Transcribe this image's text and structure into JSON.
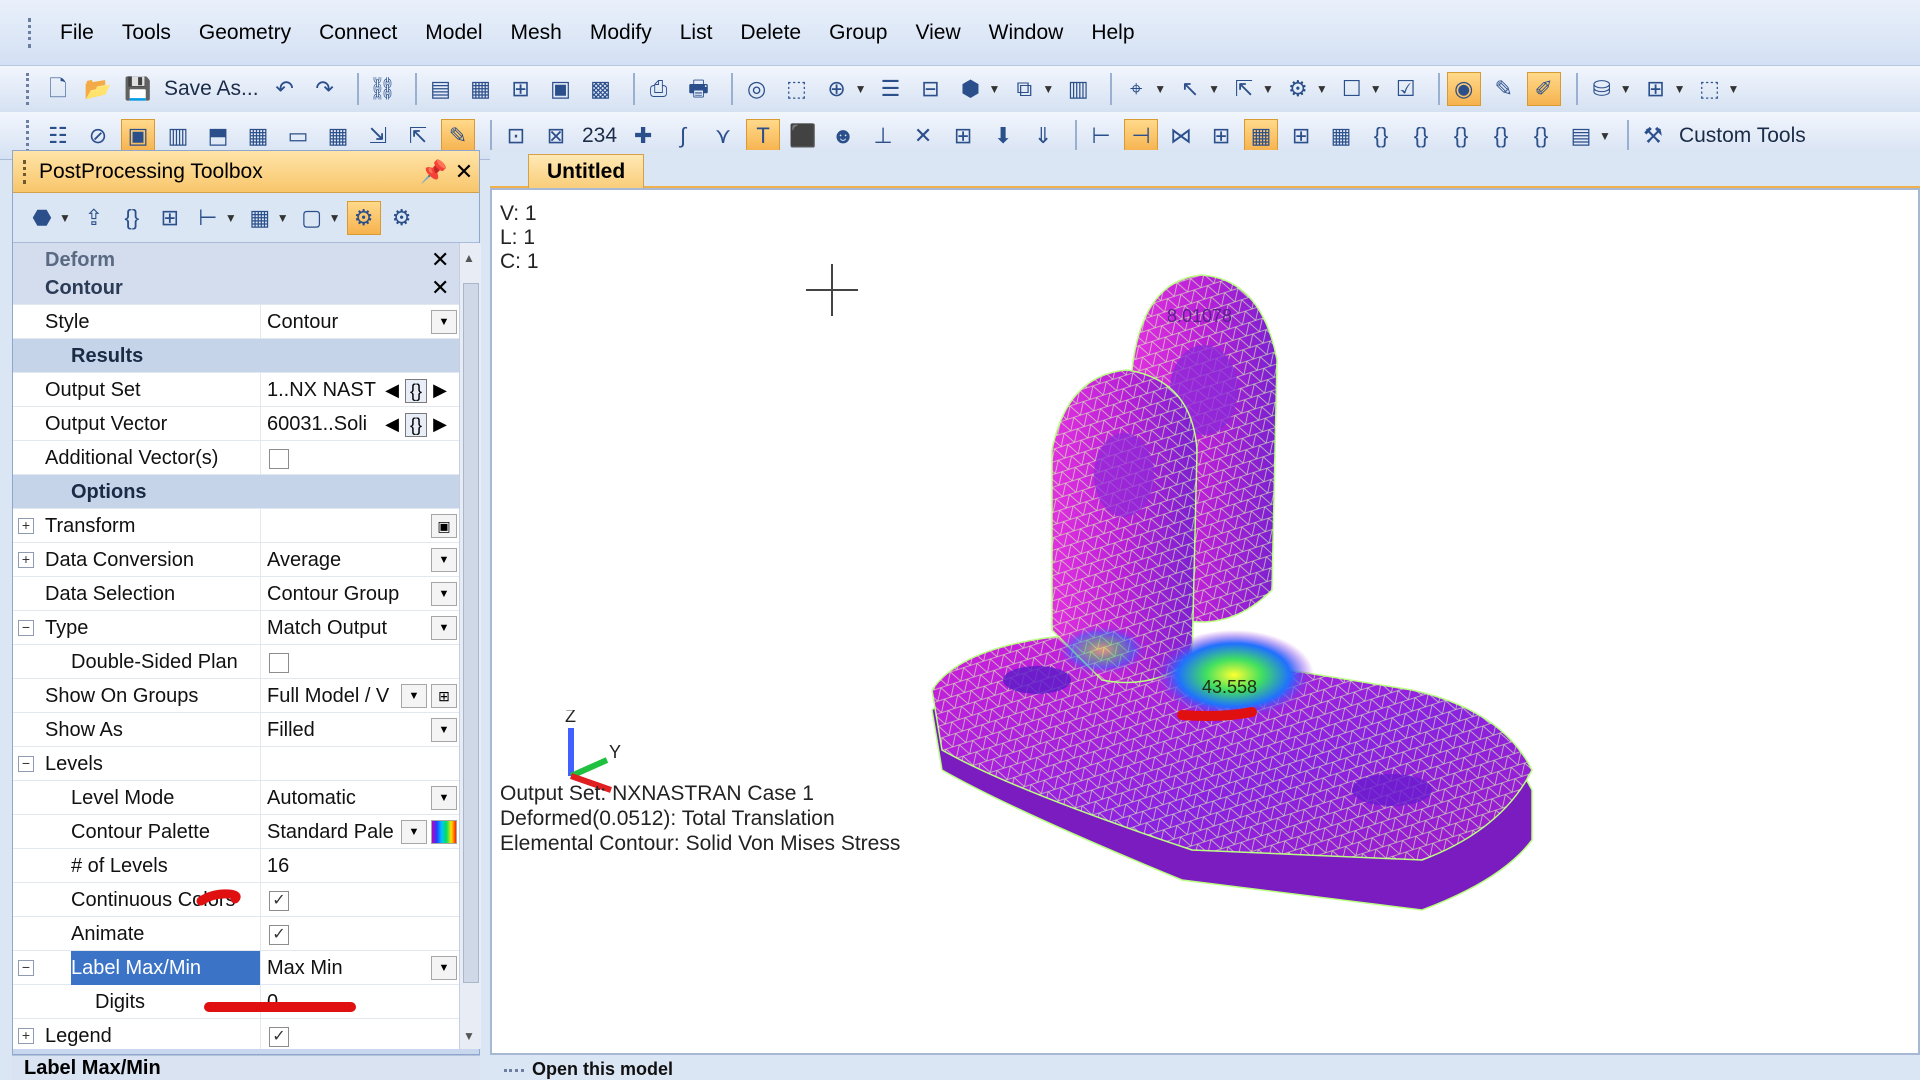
{
  "menubar": {
    "items": [
      "File",
      "Tools",
      "Geometry",
      "Connect",
      "Model",
      "Mesh",
      "Modify",
      "List",
      "Delete",
      "Group",
      "View",
      "Window",
      "Help"
    ]
  },
  "toolbar": {
    "save_as_label": "Save As...",
    "custom_tools_label": "Custom Tools",
    "numbering_label": "234"
  },
  "toolbox": {
    "title": "PostProcessing Toolbox",
    "rows": {
      "deform": "Deform",
      "contour": "Contour",
      "style_label": "Style",
      "style_value": "Contour",
      "results": "Results",
      "output_set_label": "Output Set",
      "output_set_value": "1..NX NAST",
      "output_vector_label": "Output Vector",
      "output_vector_value": "60031..Soli",
      "additional_vectors_label": "Additional Vector(s)",
      "options": "Options",
      "transform_label": "Transform",
      "data_conversion_label": "Data Conversion",
      "data_conversion_value": "Average",
      "data_selection_label": "Data Selection",
      "data_selection_value": "Contour Group",
      "type_label": "Type",
      "type_value": "Match Output",
      "double_sided_label": "Double-Sided Plan",
      "show_on_groups_label": "Show On Groups",
      "show_on_groups_value": "Full Model / V",
      "show_as_label": "Show As",
      "show_as_value": "Filled",
      "levels_label": "Levels",
      "level_mode_label": "Level Mode",
      "level_mode_value": "Automatic",
      "contour_palette_label": "Contour Palette",
      "contour_palette_value": "Standard Pale",
      "num_levels_label": "# of Levels",
      "num_levels_value": "16",
      "continuous_colors_label": "Continuous Colors",
      "animate_label": "Animate",
      "label_maxmin_label": "Label Max/Min",
      "label_maxmin_value": "Max Min",
      "digits_label": "Digits",
      "digits_value": "0",
      "legend_label": "Legend"
    },
    "status": "Label Max/Min"
  },
  "viewport": {
    "tab": "Untitled",
    "info": [
      "V: 1",
      "L: 1",
      "C: 1"
    ],
    "max_label": "43.558",
    "min_label": "8.01078",
    "axis": {
      "z": "Z",
      "y": "Y"
    },
    "footer": [
      "Output Set: NXNASTRAN Case 1",
      "Deformed(0.0512): Total Translation",
      "Elemental Contour: Solid Von Mises Stress"
    ]
  },
  "messages": {
    "text": "Open this model"
  },
  "colors": {
    "accent_orange": "#f8c66b",
    "selection_blue": "#3b73c7",
    "annotation_red": "#e01010"
  }
}
